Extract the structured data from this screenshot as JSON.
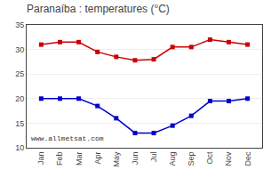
{
  "chart_data": {
    "type": "line",
    "title": "Paranaíba : temperatures (°C)",
    "categories": [
      "Jan",
      "Feb",
      "Mar",
      "Apr",
      "May",
      "Jun",
      "Jul",
      "Aug",
      "Sep",
      "Oct",
      "Nov",
      "Dec"
    ],
    "series": [
      {
        "color": "#cc0000",
        "marker": "square",
        "values": [
          31.0,
          31.5,
          31.5,
          29.5,
          28.5,
          27.8,
          28.0,
          30.5,
          30.5,
          32.0,
          31.5,
          31.0
        ]
      },
      {
        "color": "#0000cc",
        "marker": "square",
        "values": [
          20.0,
          20.0,
          20.0,
          18.5,
          16.0,
          13.0,
          13.0,
          14.5,
          16.5,
          19.5,
          19.5,
          20.0
        ]
      }
    ],
    "ylim": [
      10,
      35
    ],
    "yticks": [
      10,
      15,
      20,
      25,
      30,
      35
    ],
    "grid": "y",
    "annotations": [
      "www.allmetsat.com"
    ]
  }
}
